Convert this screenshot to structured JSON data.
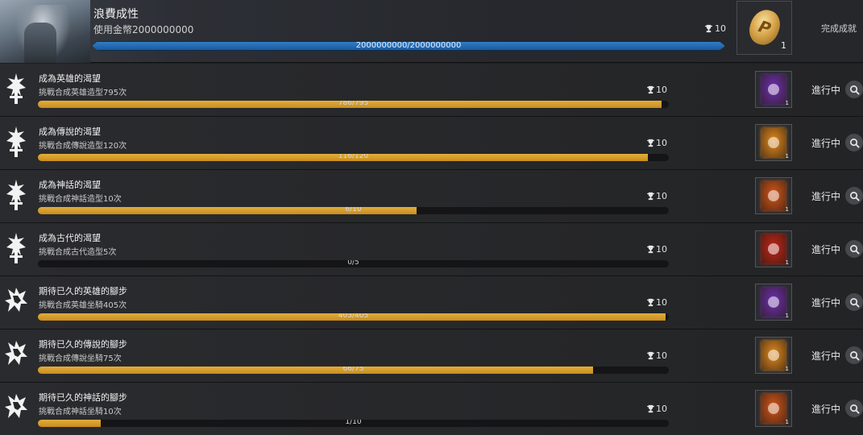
{
  "header": {
    "title": "浪費成性",
    "description": "使用金幣2000000000",
    "trophy_points": "10",
    "progress_text": "2000000000/2000000000",
    "progress": 1.0,
    "reward_count": "1",
    "reward_icon": "gold-coin-icon",
    "complete_label": "完成成就"
  },
  "colors": {
    "bar_gold": "#d9a230",
    "bar_blue": "#1f62a8",
    "hero_purple": "#6b2fb0",
    "legend_orange": "#e08a1e",
    "myth_orange": "#d2561a",
    "ancient_red": "#c02418"
  },
  "achievements": [
    {
      "title": "成為英雄的渴望",
      "description": "挑戰合成英雄造型795次",
      "points": "10",
      "progress_text": "786/795",
      "progress": 0.9887,
      "status": "進行中",
      "reward_count": "1",
      "icon": "crossed-swords-icon",
      "card_tier": "hero",
      "card_color": "#6b2fb0"
    },
    {
      "title": "成為傳說的渴望",
      "description": "挑戰合成傳說造型120次",
      "points": "10",
      "progress_text": "116/120",
      "progress": 0.9667,
      "status": "進行中",
      "reward_count": "1",
      "icon": "crossed-swords-icon",
      "card_tier": "legend",
      "card_color": "#e08a1e"
    },
    {
      "title": "成為神話的渴望",
      "description": "挑戰合成神話造型10次",
      "points": "10",
      "progress_text": "6/10",
      "progress": 0.6,
      "status": "進行中",
      "reward_count": "1",
      "icon": "crossed-swords-icon",
      "card_tier": "myth",
      "card_color": "#d2561a"
    },
    {
      "title": "成為古代的渴望",
      "description": "挑戰合成古代造型5次",
      "points": "10",
      "progress_text": "0/5",
      "progress": 0.0,
      "status": "進行中",
      "reward_count": "1",
      "icon": "crossed-swords-icon",
      "card_tier": "ancient",
      "card_color": "#c02418"
    },
    {
      "title": "期待已久的英雄的腳步",
      "description": "挑戰合成英雄坐騎405次",
      "points": "10",
      "progress_text": "403/405",
      "progress": 0.9951,
      "status": "進行中",
      "reward_count": "1",
      "icon": "horse-head-icon",
      "card_tier": "hero",
      "card_color": "#6b2fb0"
    },
    {
      "title": "期待已久的傳說的腳步",
      "description": "挑戰合成傳說坐騎75次",
      "points": "10",
      "progress_text": "66/75",
      "progress": 0.88,
      "status": "進行中",
      "reward_count": "1",
      "icon": "horse-head-icon",
      "card_tier": "legend",
      "card_color": "#e08a1e"
    },
    {
      "title": "期待已久的神話的腳步",
      "description": "挑戰合成神話坐騎10次",
      "points": "10",
      "progress_text": "1/10",
      "progress": 0.1,
      "status": "進行中",
      "reward_count": "1",
      "icon": "horse-head-icon",
      "card_tier": "myth",
      "card_color": "#d2561a"
    }
  ]
}
